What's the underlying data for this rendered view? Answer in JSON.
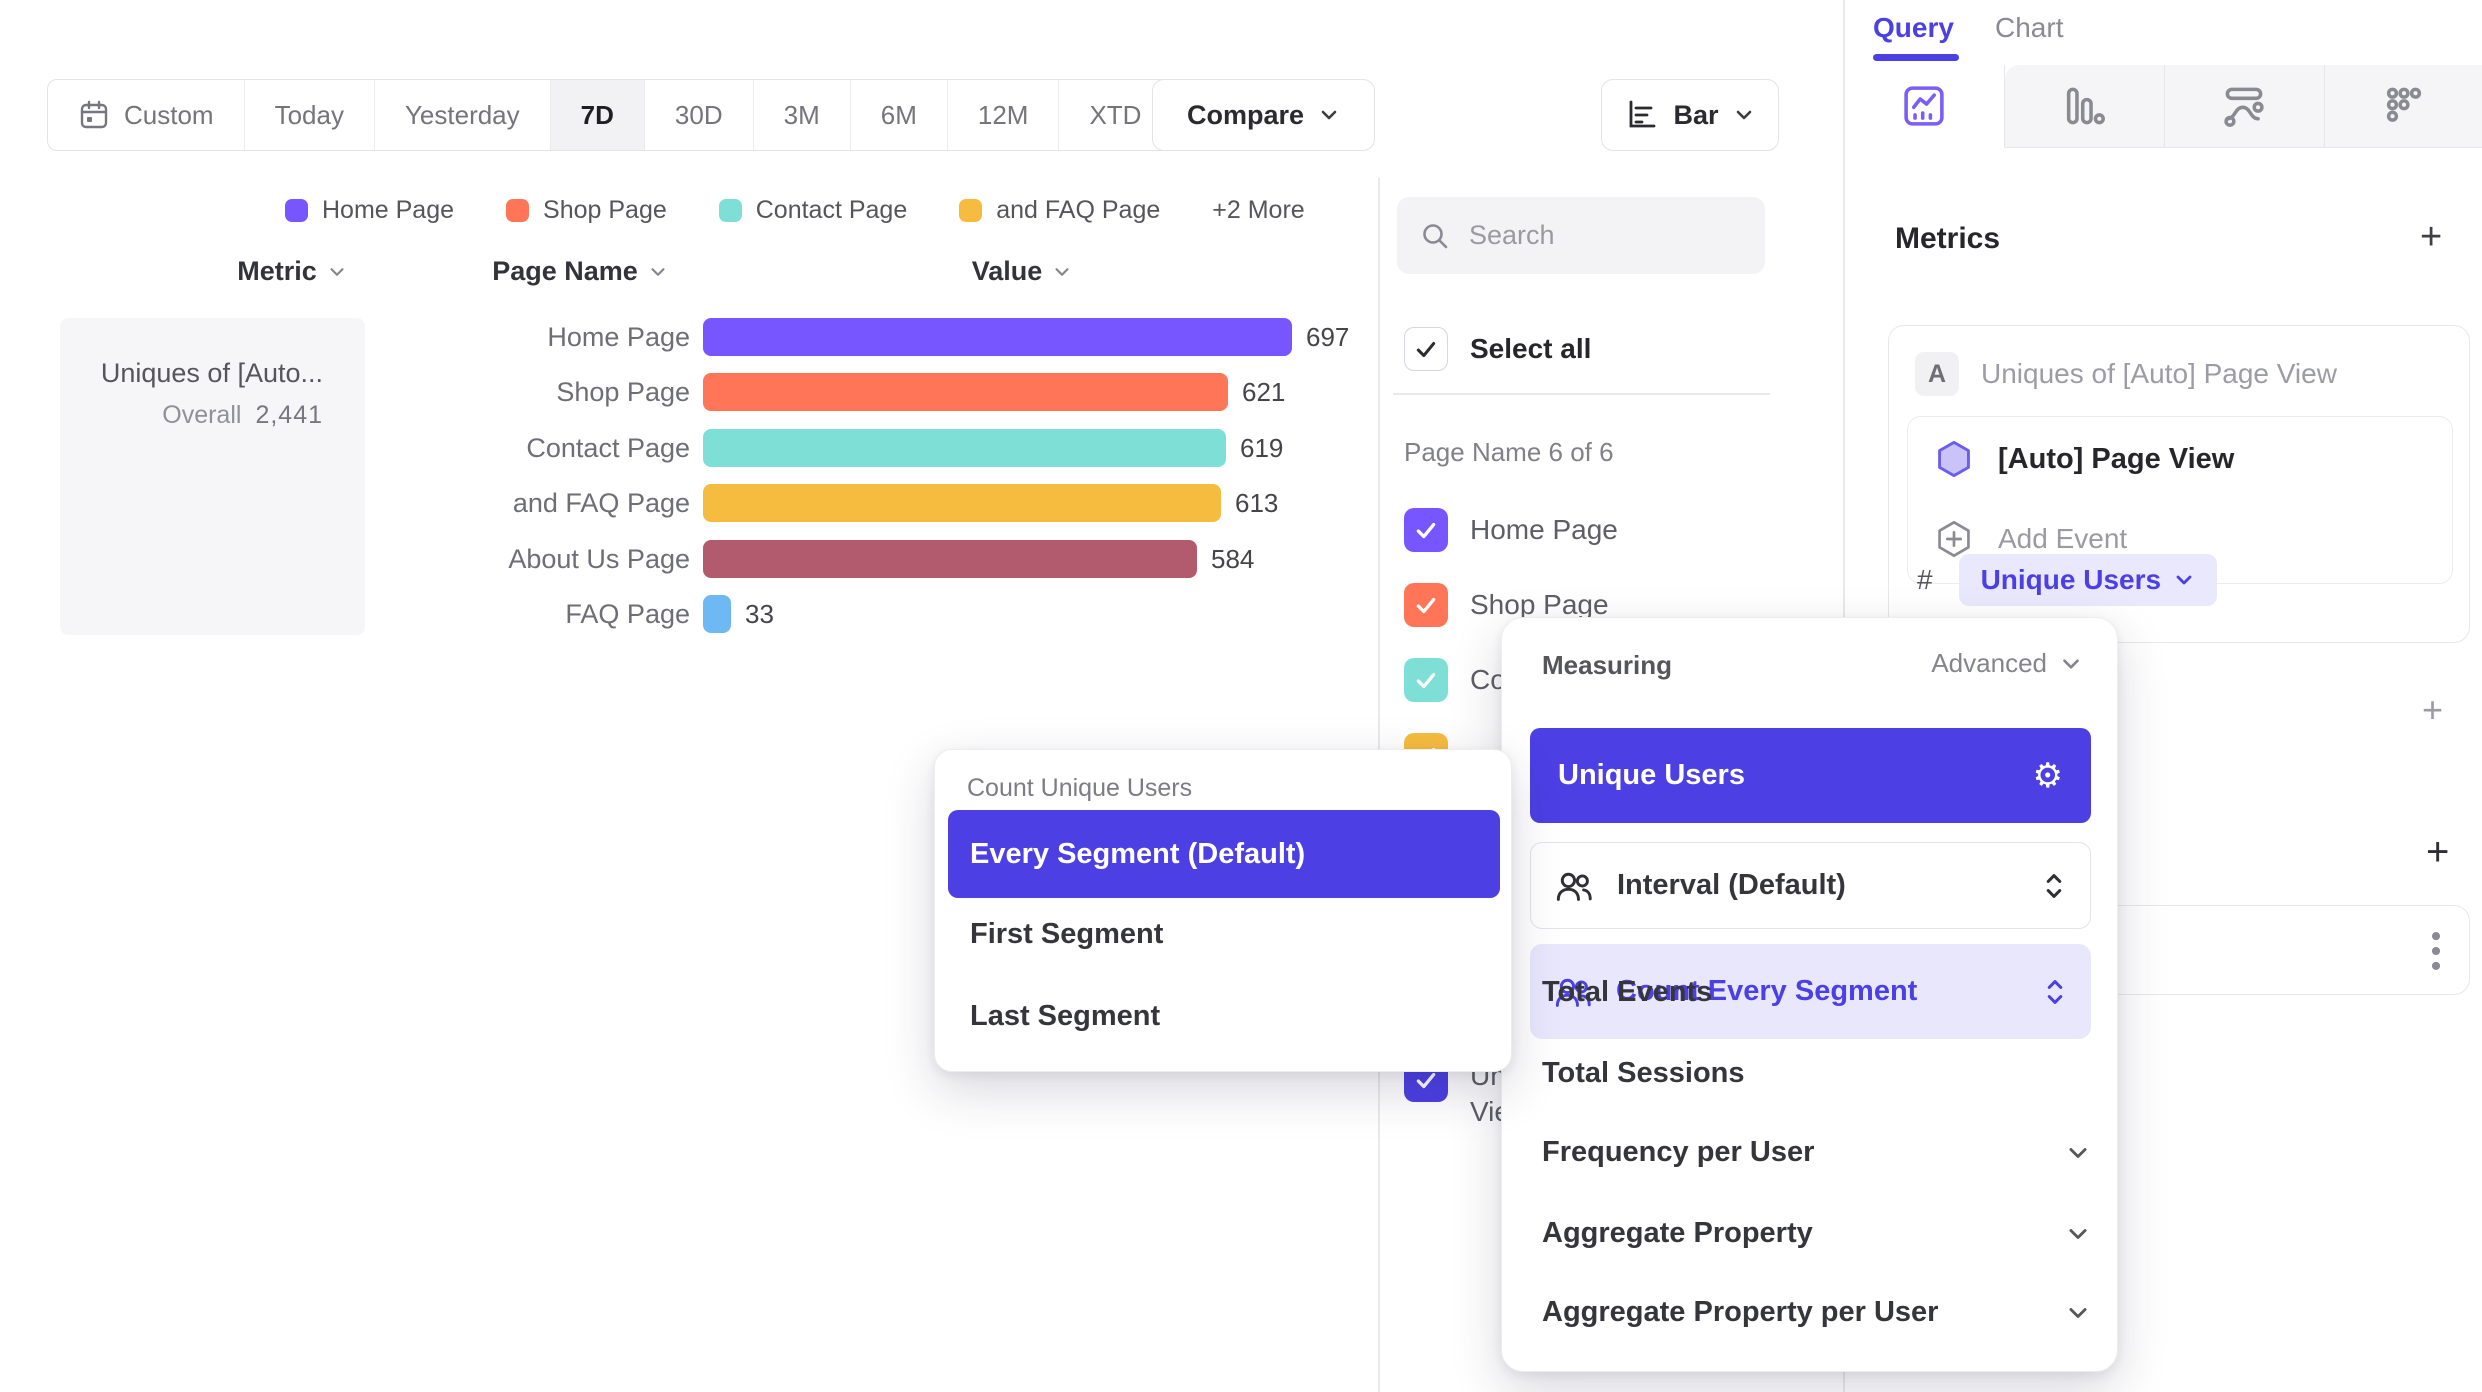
{
  "palette": {
    "accent_indigo": "#4c3fe4",
    "brand_purple": "#7856ff",
    "orange": "#ff7557",
    "teal": "#7edfd6",
    "yellow": "#f6bc3f",
    "maroon": "#b25b6f",
    "blue": "#6eb9f3",
    "lavender": "#eae8fc"
  },
  "toolbar": {
    "date_ranges": [
      "Custom",
      "Today",
      "Yesterday",
      "7D",
      "30D",
      "3M",
      "6M",
      "12M",
      "XTD"
    ],
    "active_range": "7D",
    "compare_label": "Compare",
    "view_type_label": "Bar"
  },
  "legend": {
    "items": [
      {
        "label": "Home Page",
        "color": "#7856ff"
      },
      {
        "label": "Shop Page",
        "color": "#ff7557"
      },
      {
        "label": "Contact Page",
        "color": "#7edfd6"
      },
      {
        "label": "and FAQ Page",
        "color": "#f6bc3f"
      }
    ],
    "more_label": "+2 More"
  },
  "table": {
    "headers": [
      "Metric",
      "Page Name",
      "Value"
    ],
    "metric_cell": {
      "line1": "Uniques of [Auto...",
      "overall_label": "Overall",
      "overall_value": "2,441"
    }
  },
  "chart_data": {
    "type": "bar",
    "orientation": "horizontal",
    "series_name": "Uniques of [Auto] Page View",
    "categories": [
      "Home Page",
      "Shop Page",
      "Contact Page",
      "and FAQ Page",
      "About Us Page",
      "FAQ Page"
    ],
    "values": [
      697,
      621,
      619,
      613,
      584,
      33
    ],
    "colors": [
      "#7856ff",
      "#ff7557",
      "#7edfd6",
      "#f6bc3f",
      "#b25b6f",
      "#6eb9f3"
    ],
    "overall_total": 2441,
    "value_labels_shown": true,
    "grid": false,
    "legend_position": "top"
  },
  "segment_panel": {
    "search_placeholder": "Search",
    "select_all_label": "Select all",
    "group_label": "Page Name 6 of 6",
    "items": [
      {
        "label": "Home Page",
        "color": "#7856ff",
        "checked": true
      },
      {
        "label": "Shop Page",
        "color": "#ff7557",
        "checked": true
      },
      {
        "label": "Contact Page",
        "color": "#7edfd6",
        "checked": true
      },
      {
        "label": "and FAQ Page",
        "color": "#f6bc3f",
        "checked": true
      },
      {
        "label": "About Us Page",
        "color": "#b25b6f",
        "checked": true
      },
      {
        "label": "FAQ Page",
        "color": "#6eb9f3",
        "checked": true
      }
    ],
    "metric_item": {
      "label": "Uniques of [Auto] Page View",
      "color": "#4c3fe4",
      "checked": true
    }
  },
  "query_panel": {
    "tabs": [
      {
        "label": "Query",
        "active": true
      },
      {
        "label": "Chart",
        "active": false
      }
    ],
    "view_tabs": [
      "insights",
      "funnels",
      "flows",
      "retention"
    ],
    "metrics_heading": "Metrics",
    "add_metric_label": "+",
    "metric_card": {
      "letter": "A",
      "title": "Uniques of [Auto] Page View",
      "event_label": "[Auto] Page View",
      "add_event_label": "Add Event",
      "count_prefix": "#",
      "measurement_chip": "Unique Users"
    },
    "add_filter_label": "+",
    "add_breakdown_label": "+"
  },
  "count_menu": {
    "title": "Count Unique Users",
    "options": [
      {
        "label": "Every Segment (Default)",
        "selected": true
      },
      {
        "label": "First Segment",
        "selected": false
      },
      {
        "label": "Last Segment",
        "selected": false
      }
    ]
  },
  "measuring_menu": {
    "title": "Measuring",
    "mode_label": "Advanced",
    "selected_measure": "Unique Users",
    "interval_row_label": "Interval (Default)",
    "count_row_label": "Count Every Segment",
    "simple_options": [
      "Total Events",
      "Total Sessions"
    ],
    "expandable_options": [
      "Frequency per User",
      "Aggregate Property",
      "Aggregate Property per User"
    ]
  }
}
